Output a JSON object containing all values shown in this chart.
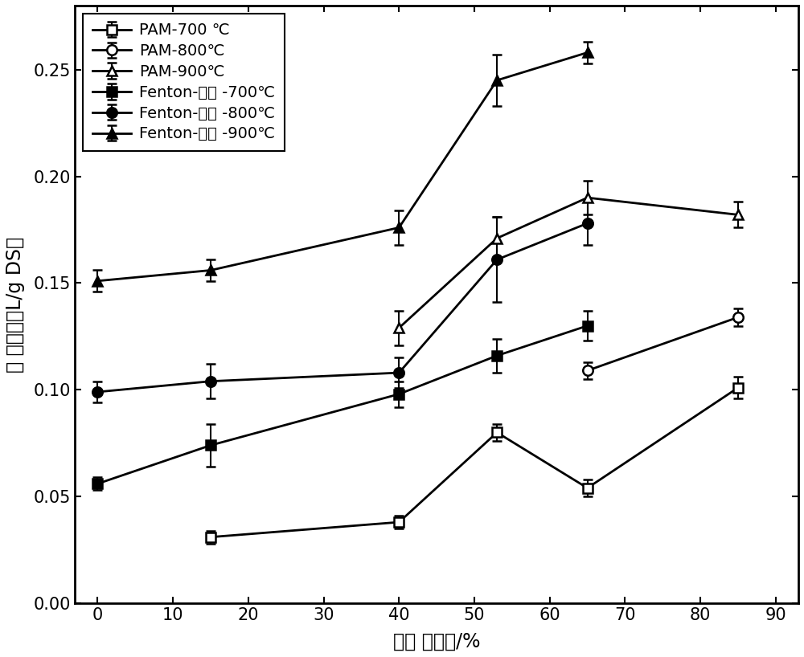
{
  "x": [
    0,
    15,
    40,
    53,
    65,
    85
  ],
  "series": [
    {
      "label": "PAM-700 ℃",
      "marker": "s",
      "fillstyle": "none",
      "y": [
        null,
        0.031,
        0.038,
        0.08,
        0.054,
        0.101
      ],
      "yerr": [
        null,
        0.003,
        0.003,
        0.004,
        0.004,
        0.005
      ]
    },
    {
      "label": "PAM-800℃",
      "marker": "o",
      "fillstyle": "none",
      "y": [
        null,
        null,
        null,
        null,
        0.109,
        0.134
      ],
      "yerr": [
        null,
        null,
        null,
        null,
        0.004,
        0.004
      ]
    },
    {
      "label": "PAM-900℃",
      "marker": "^",
      "fillstyle": "none",
      "y": [
        null,
        null,
        0.129,
        0.171,
        0.19,
        0.182
      ],
      "yerr": [
        null,
        null,
        0.008,
        0.01,
        0.008,
        0.006
      ]
    },
    {
      "label": "Fenton-赤泥 -700℃",
      "marker": "s",
      "fillstyle": "full",
      "y": [
        0.056,
        0.074,
        0.098,
        0.116,
        0.13,
        null
      ],
      "yerr": [
        0.003,
        0.01,
        0.006,
        0.008,
        0.007,
        null
      ]
    },
    {
      "label": "Fenton-赤泥 -800℃",
      "marker": "o",
      "fillstyle": "full",
      "y": [
        0.099,
        0.104,
        0.108,
        0.161,
        0.178,
        null
      ],
      "yerr": [
        0.005,
        0.008,
        0.007,
        0.02,
        0.01,
        null
      ]
    },
    {
      "label": "Fenton-赤泥 -900℃",
      "marker": "^",
      "fillstyle": "full",
      "y": [
        0.151,
        0.156,
        0.176,
        0.245,
        0.258,
        null
      ],
      "yerr": [
        0.005,
        0.005,
        0.008,
        0.012,
        0.005,
        null
      ]
    }
  ],
  "xlabel": "泥饼 含水率/%",
  "ylabel": "总 产气量（L/g DS）",
  "xlim": [
    -3,
    93
  ],
  "ylim": [
    0.0,
    0.28
  ],
  "xticks": [
    0,
    10,
    20,
    30,
    40,
    50,
    60,
    70,
    80,
    90
  ],
  "yticks": [
    0.0,
    0.05,
    0.1,
    0.15,
    0.2,
    0.25
  ],
  "figsize": [
    10.0,
    8.18
  ],
  "dpi": 100,
  "markersize": 9,
  "linewidth": 2.0,
  "capsize": 4,
  "legend_fontsize": 14,
  "axis_label_fontsize": 17,
  "tick_fontsize": 15
}
